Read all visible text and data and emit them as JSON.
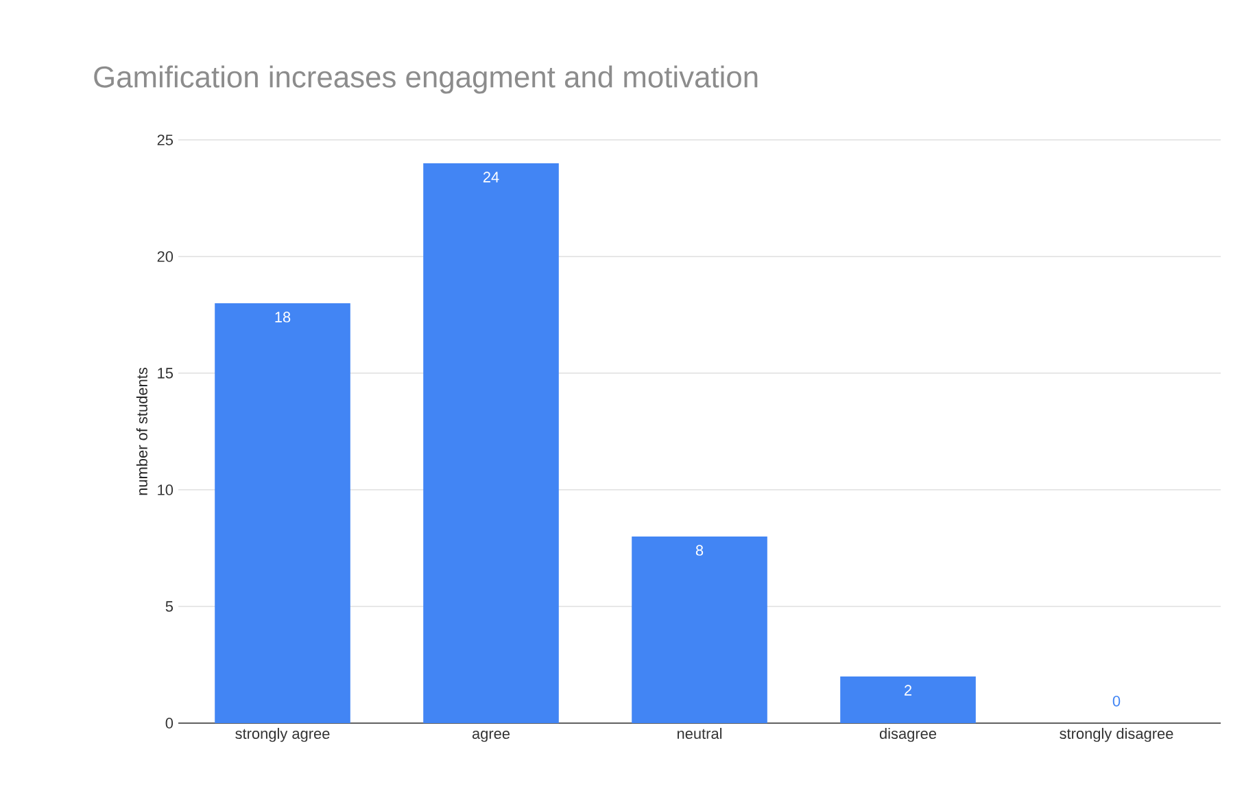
{
  "chart_data": {
    "type": "bar",
    "title": "Gamification increases engagment and motivation",
    "ylabel": "number of students",
    "categories": [
      "strongly agree",
      "agree",
      "neutral",
      "disagree",
      "strongly disagree"
    ],
    "values": [
      18,
      24,
      8,
      2,
      0
    ],
    "color": "#4285f4",
    "ylim": [
      0,
      25
    ],
    "yticks": [
      0,
      5,
      10,
      15,
      20,
      25
    ],
    "grid": "y",
    "data_labels": true
  }
}
